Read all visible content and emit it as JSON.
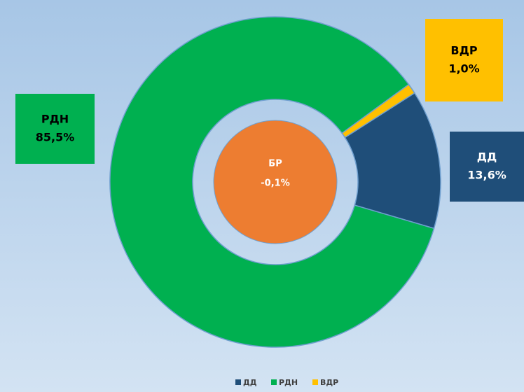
{
  "chart_data": {
    "type": "doughnut",
    "categories": [
      "ДД",
      "РДН",
      "ВДР"
    ],
    "values": [
      13.6,
      85.5,
      1.0
    ],
    "value_labels": [
      "13,6%",
      "85,5%",
      "1,0%"
    ],
    "colors": [
      "#1f4e79",
      "#00b050",
      "#ffc000"
    ],
    "center": {
      "name": "БР",
      "value": -0.1,
      "value_label": "-0,1%",
      "color": "#ed7d31"
    },
    "legend": "bottom"
  }
}
